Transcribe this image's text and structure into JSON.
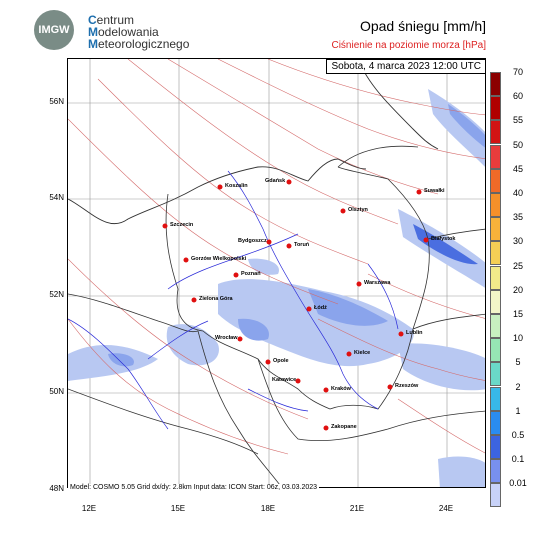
{
  "header": {
    "logo_text": "IMGW",
    "org_line1_initial": "C",
    "org_line1_rest": "entrum",
    "org_line2_initial": "M",
    "org_line2_rest": "odelowania",
    "org_line3_initial": "M",
    "org_line3_rest": "eteorologicznego",
    "title": "Opad śniegu [mm/h]",
    "subtitle": "Ciśnienie na poziomie morza [hPa]"
  },
  "map": {
    "timestamp": "Sobota, 4 marca 2023 12:00 UTC",
    "footer": "Model: COSMO 5.05  Grid dx/dy: 2.8km  Input data: ICON  Start: 06z, 03.03.2023",
    "lat_labels": [
      "56N",
      "54N",
      "52N",
      "50N",
      "48N"
    ],
    "lon_labels": [
      "12E",
      "15E",
      "18E",
      "21E",
      "24E"
    ],
    "cities": [
      {
        "name": "Koszalin"
      },
      {
        "name": "Gdańsk"
      },
      {
        "name": "Suwałki"
      },
      {
        "name": "Olsztyn"
      },
      {
        "name": "Szczecin"
      },
      {
        "name": "Bydgoszcz"
      },
      {
        "name": "Toruń"
      },
      {
        "name": "Białystok"
      },
      {
        "name": "Gorzów Wielkopolski"
      },
      {
        "name": "Poznań"
      },
      {
        "name": "Warszawa"
      },
      {
        "name": "Zielona Góra"
      },
      {
        "name": "Łódź"
      },
      {
        "name": "Lublin"
      },
      {
        "name": "Wrocław"
      },
      {
        "name": "Opole"
      },
      {
        "name": "Kielce"
      },
      {
        "name": "Katowice"
      },
      {
        "name": "Kraków"
      },
      {
        "name": "Rzeszów"
      },
      {
        "name": "Zakopane"
      }
    ]
  },
  "legend": {
    "levels": [
      "70",
      "60",
      "55",
      "50",
      "45",
      "40",
      "35",
      "30",
      "25",
      "20",
      "15",
      "10",
      "5",
      "2",
      "1",
      "0.5",
      "0.1",
      "0.01"
    ],
    "colors": [
      "#8b0000",
      "#b00000",
      "#d21414",
      "#e83c3c",
      "#f06a28",
      "#f5902a",
      "#f7b23a",
      "#f5cf55",
      "#f2ea8a",
      "#f3f6c8",
      "#c8f0c0",
      "#96e6b4",
      "#6ad8c8",
      "#38b8e8",
      "#2a8cf0",
      "#3c64e0",
      "#7890ee",
      "#c8d2f8"
    ]
  },
  "colors": {
    "snow_light": "#b8c8f2",
    "snow_mid": "#8aa4ec",
    "snow_dark": "#4a6ee0",
    "isobar": "#d46a6a",
    "border": "#333333",
    "river": "#2a2ad8",
    "city": "#e01010"
  }
}
